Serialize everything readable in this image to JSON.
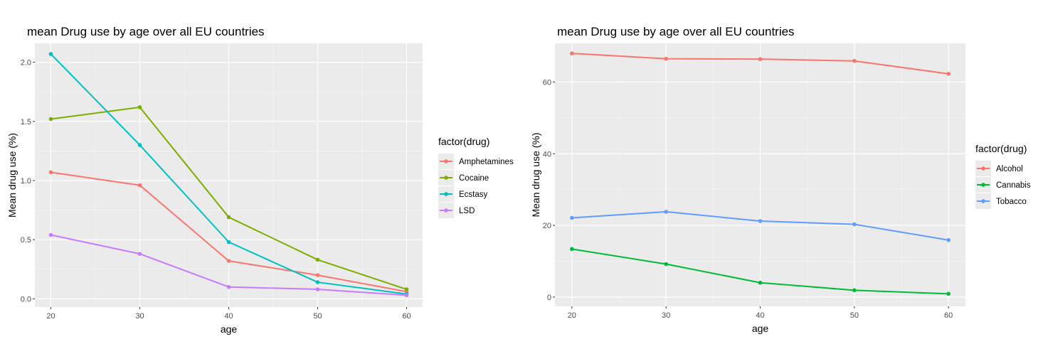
{
  "chart_data": [
    {
      "type": "line",
      "title": "mean Drug use by age over all EU countries",
      "xlabel": "age",
      "ylabel": "Mean drug use (%)",
      "x": [
        20,
        30,
        40,
        50,
        60
      ],
      "xticks": [
        "20",
        "30",
        "40",
        "50",
        "60"
      ],
      "xlim": [
        18.2,
        61.8
      ],
      "ylim": [
        -0.07,
        2.16
      ],
      "yticks": [
        "0.0",
        "0.5",
        "1.0",
        "1.5",
        "2.0"
      ],
      "ytick_values": [
        0,
        0.5,
        1.0,
        1.5,
        2.0
      ],
      "legend_title": "factor(drug)",
      "legend_position": "right",
      "grid": true,
      "series": [
        {
          "name": "Amphetamines",
          "color": "#F8766D",
          "values": [
            1.07,
            0.96,
            0.32,
            0.2,
            0.06
          ]
        },
        {
          "name": "Cocaine",
          "color": "#7CAE00",
          "values": [
            1.52,
            1.62,
            0.69,
            0.33,
            0.08
          ]
        },
        {
          "name": "Ecstasy",
          "color": "#00BFC4",
          "values": [
            2.07,
            1.3,
            0.48,
            0.14,
            0.04
          ]
        },
        {
          "name": "LSD",
          "color": "#C77CFF",
          "values": [
            0.54,
            0.38,
            0.1,
            0.08,
            0.03
          ]
        }
      ]
    },
    {
      "type": "line",
      "title": "mean Drug use by age over all EU countries",
      "xlabel": "age",
      "ylabel": "Mean drug use (%)",
      "x": [
        20,
        30,
        40,
        50,
        60
      ],
      "xticks": [
        "20",
        "30",
        "40",
        "50",
        "60"
      ],
      "xlim": [
        18.2,
        61.8
      ],
      "ylim": [
        -2.6,
        70.8
      ],
      "yticks": [
        "0",
        "20",
        "40",
        "60"
      ],
      "ytick_values": [
        0,
        20,
        40,
        60
      ],
      "legend_title": "factor(drug)",
      "legend_position": "right",
      "grid": true,
      "series": [
        {
          "name": "Alcohol",
          "color": "#F8766D",
          "values": [
            68.0,
            66.5,
            66.4,
            65.9,
            62.3
          ]
        },
        {
          "name": "Cannabis",
          "color": "#00BA38",
          "values": [
            13.4,
            9.2,
            4.0,
            1.9,
            0.9
          ]
        },
        {
          "name": "Tobacco",
          "color": "#619CFF",
          "values": [
            22.1,
            23.8,
            21.2,
            20.3,
            15.9
          ]
        }
      ]
    }
  ]
}
